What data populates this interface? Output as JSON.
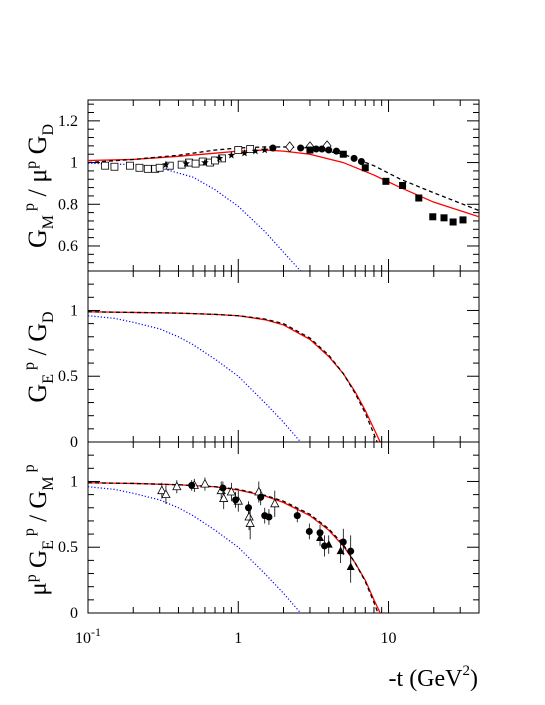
{
  "chart_data": [
    {
      "type": "line",
      "panel": "top",
      "ylabel": {
        "main": "G",
        "sub1": "M",
        "sup1": "p",
        "mid": " / μ",
        "sup2": "p",
        "end": " G",
        "sub2": "D"
      },
      "xscale": "log",
      "xlim": [
        0.1,
        40
      ],
      "ylim": [
        0.48,
        1.3
      ],
      "yticks": [
        {
          "value": 0.6,
          "label": "0.6"
        },
        {
          "value": 0.8,
          "label": "0.8"
        },
        {
          "value": 1.0,
          "label": "1"
        },
        {
          "value": 1.2,
          "label": "1.2"
        }
      ],
      "series": [
        {
          "style": "red-solid",
          "color": "#ff0000",
          "points": [
            [
              0.1,
              1.01
            ],
            [
              0.2,
              1.015
            ],
            [
              0.4,
              1.03
            ],
            [
              0.7,
              1.045
            ],
            [
              1.0,
              1.055
            ],
            [
              1.5,
              1.06
            ],
            [
              2.0,
              1.055
            ],
            [
              3.0,
              1.04
            ],
            [
              5.0,
              1.0
            ],
            [
              8.0,
              0.94
            ],
            [
              12.0,
              0.88
            ],
            [
              20.0,
              0.81
            ],
            [
              40.0,
              0.74
            ]
          ]
        },
        {
          "style": "black-dashed",
          "color": "#000000",
          "points": [
            [
              0.1,
              1.0
            ],
            [
              0.2,
              1.015
            ],
            [
              0.4,
              1.035
            ],
            [
              0.7,
              1.06
            ],
            [
              1.0,
              1.07
            ],
            [
              1.5,
              1.075
            ],
            [
              2.0,
              1.075
            ],
            [
              3.0,
              1.07
            ],
            [
              5.0,
              1.04
            ],
            [
              8.0,
              0.985
            ],
            [
              12.0,
              0.92
            ],
            [
              20.0,
              0.855
            ],
            [
              40.0,
              0.77
            ]
          ]
        },
        {
          "style": "blue-dotted",
          "color": "#0000ff",
          "points": [
            [
              0.1,
              0.997
            ],
            [
              0.2,
              0.99
            ],
            [
              0.3,
              0.975
            ],
            [
              0.5,
              0.93
            ],
            [
              0.7,
              0.87
            ],
            [
              1.0,
              0.79
            ],
            [
              1.5,
              0.67
            ],
            [
              2.0,
              0.57
            ],
            [
              2.6,
              0.48
            ]
          ]
        }
      ],
      "markers": [
        {
          "shape": "square-open",
          "points": [
            [
              0.13,
              0.985
            ],
            [
              0.15,
              0.98
            ],
            [
              0.19,
              0.985
            ],
            [
              0.22,
              0.975
            ],
            [
              0.25,
              0.97
            ],
            [
              0.28,
              0.97
            ],
            [
              0.3,
              0.975
            ],
            [
              0.35,
              0.985
            ],
            [
              0.42,
              0.99
            ],
            [
              0.47,
              1.0
            ],
            [
              0.52,
              0.995
            ],
            [
              0.58,
              1.005
            ],
            [
              0.65,
              1.0
            ],
            [
              0.7,
              1.01
            ],
            [
              0.78,
              1.02
            ],
            [
              1.0,
              1.06
            ],
            [
              1.2,
              1.065
            ]
          ]
        },
        {
          "shape": "star",
          "points": [
            [
              0.33,
              0.99
            ],
            [
              0.45,
              0.995
            ],
            [
              0.6,
              1.0
            ],
            [
              0.75,
              1.02
            ],
            [
              0.9,
              1.035
            ],
            [
              1.1,
              1.045
            ],
            [
              1.3,
              1.055
            ],
            [
              1.5,
              1.06
            ]
          ]
        },
        {
          "shape": "diamond-open",
          "points": [
            [
              2.2,
              1.075
            ],
            [
              3.0,
              1.075
            ],
            [
              3.9,
              1.08
            ]
          ]
        },
        {
          "shape": "circle-filled",
          "points": [
            [
              1.7,
              1.07
            ],
            [
              2.6,
              1.07
            ],
            [
              3.3,
              1.065
            ],
            [
              3.6,
              1.065
            ],
            [
              4.0,
              1.06
            ],
            [
              4.5,
              1.055
            ],
            [
              5.9,
              1.02
            ],
            [
              6.6,
              1.005
            ]
          ]
        },
        {
          "shape": "square-filled",
          "points": [
            [
              3.0,
              1.06
            ],
            [
              5.0,
              1.04
            ],
            [
              7.0,
              0.975
            ],
            [
              9.6,
              0.91
            ],
            [
              12.4,
              0.89
            ],
            [
              15.9,
              0.83
            ],
            [
              19.7,
              0.74
            ],
            [
              23.4,
              0.735
            ],
            [
              26.9,
              0.715
            ],
            [
              31.3,
              0.725
            ]
          ]
        }
      ]
    },
    {
      "type": "line",
      "panel": "middle",
      "ylabel": {
        "main": "G",
        "sub1": "E",
        "sup1": "p",
        "end": " / G",
        "sub2": "D"
      },
      "xscale": "log",
      "xlim": [
        0.1,
        40
      ],
      "ylim": [
        0,
        1.3
      ],
      "yticks": [
        {
          "value": 0,
          "label": "0"
        },
        {
          "value": 0.5,
          "label": "0.5"
        },
        {
          "value": 1.0,
          "label": "1"
        }
      ],
      "series": [
        {
          "style": "red-solid",
          "color": "#ff0000",
          "points": [
            [
              0.1,
              0.99
            ],
            [
              0.2,
              0.985
            ],
            [
              0.4,
              0.98
            ],
            [
              0.7,
              0.97
            ],
            [
              1.0,
              0.96
            ],
            [
              1.5,
              0.93
            ],
            [
              2.0,
              0.89
            ],
            [
              3.0,
              0.78
            ],
            [
              4.0,
              0.65
            ],
            [
              5.0,
              0.52
            ],
            [
              6.0,
              0.38
            ],
            [
              7.0,
              0.24
            ],
            [
              8.0,
              0.1
            ],
            [
              8.8,
              0.0
            ]
          ]
        },
        {
          "style": "black-dashed",
          "color": "#000000",
          "points": [
            [
              0.1,
              0.99
            ],
            [
              0.2,
              0.985
            ],
            [
              0.4,
              0.98
            ],
            [
              0.7,
              0.97
            ],
            [
              1.0,
              0.96
            ],
            [
              1.5,
              0.935
            ],
            [
              2.0,
              0.9
            ],
            [
              3.0,
              0.79
            ],
            [
              4.0,
              0.66
            ],
            [
              5.0,
              0.52
            ],
            [
              6.0,
              0.37
            ],
            [
              7.0,
              0.22
            ],
            [
              8.0,
              0.06
            ],
            [
              8.4,
              0.0
            ]
          ]
        },
        {
          "style": "blue-dotted",
          "color": "#0000ff",
          "points": [
            [
              0.1,
              0.96
            ],
            [
              0.15,
              0.94
            ],
            [
              0.2,
              0.91
            ],
            [
              0.3,
              0.86
            ],
            [
              0.4,
              0.8
            ],
            [
              0.5,
              0.74
            ],
            [
              0.7,
              0.63
            ],
            [
              1.0,
              0.5
            ],
            [
              1.5,
              0.3
            ],
            [
              2.0,
              0.15
            ],
            [
              2.6,
              0.0
            ]
          ]
        }
      ]
    },
    {
      "type": "line",
      "panel": "bottom",
      "ylabel": {
        "pre": "μ",
        "sup0": "p",
        "main": " G",
        "sub1": "E",
        "sup1": "p",
        "end": " / G",
        "sub2": "M",
        "sup2": "p"
      },
      "xlabel": {
        "main": "-t (GeV",
        "sup": "2",
        "end": ")"
      },
      "xscale": "log",
      "xlim": [
        0.1,
        40
      ],
      "ylim": [
        0,
        1.3
      ],
      "xticks": [
        {
          "value": 0.1,
          "base": "10",
          "exp": "-1"
        },
        {
          "value": 1,
          "base": "1",
          "exp": ""
        },
        {
          "value": 10,
          "base": "10",
          "exp": ""
        }
      ],
      "yticks": [
        {
          "value": 0,
          "label": "0"
        },
        {
          "value": 0.5,
          "label": "0.5"
        },
        {
          "value": 1.0,
          "label": "1"
        }
      ],
      "series": [
        {
          "style": "red-solid",
          "color": "#ff0000",
          "points": [
            [
              0.1,
              0.99
            ],
            [
              0.2,
              0.985
            ],
            [
              0.4,
              0.975
            ],
            [
              0.7,
              0.96
            ],
            [
              1.0,
              0.935
            ],
            [
              1.5,
              0.89
            ],
            [
              2.0,
              0.84
            ],
            [
              3.0,
              0.74
            ],
            [
              4.0,
              0.63
            ],
            [
              5.0,
              0.51
            ],
            [
              6.0,
              0.38
            ],
            [
              7.0,
              0.25
            ],
            [
              8.0,
              0.1
            ],
            [
              8.8,
              0.0
            ]
          ]
        },
        {
          "style": "black-dashed",
          "color": "#000000",
          "points": [
            [
              0.1,
              0.99
            ],
            [
              0.2,
              0.985
            ],
            [
              0.4,
              0.975
            ],
            [
              0.7,
              0.96
            ],
            [
              1.0,
              0.94
            ],
            [
              1.5,
              0.895
            ],
            [
              2.0,
              0.85
            ],
            [
              3.0,
              0.75
            ],
            [
              4.0,
              0.64
            ],
            [
              5.0,
              0.52
            ],
            [
              6.0,
              0.38
            ],
            [
              7.0,
              0.24
            ],
            [
              8.0,
              0.08
            ],
            [
              8.5,
              0.0
            ]
          ]
        },
        {
          "style": "blue-dotted",
          "color": "#0000ff",
          "points": [
            [
              0.1,
              0.96
            ],
            [
              0.15,
              0.94
            ],
            [
              0.2,
              0.91
            ],
            [
              0.3,
              0.86
            ],
            [
              0.4,
              0.8
            ],
            [
              0.5,
              0.74
            ],
            [
              0.7,
              0.63
            ],
            [
              1.0,
              0.5
            ],
            [
              1.5,
              0.3
            ],
            [
              2.0,
              0.15
            ],
            [
              2.6,
              0.0
            ]
          ]
        }
      ],
      "markers": [
        {
          "shape": "triangle-open",
          "points": [
            [
              0.31,
              0.93,
              0.06
            ],
            [
              0.33,
              0.9,
              0.07
            ],
            [
              0.39,
              0.96,
              0.05
            ],
            [
              0.51,
              0.97,
              0.05
            ],
            [
              0.6,
              0.98,
              0.05
            ],
            [
              0.77,
              0.93,
              0.07
            ],
            [
              0.8,
              0.87,
              0.08
            ],
            [
              0.9,
              0.92,
              0.07
            ],
            [
              1.0,
              0.85,
              0.08
            ],
            [
              1.18,
              0.73,
              0.1
            ],
            [
              1.2,
              0.68,
              0.12
            ],
            [
              1.37,
              0.92,
              0.08
            ],
            [
              1.75,
              0.83,
              0.1
            ]
          ]
        },
        {
          "shape": "circle-filled",
          "points": [
            [
              0.49,
              0.97,
              0.04
            ],
            [
              0.79,
              0.95,
              0.05
            ],
            [
              0.96,
              0.86,
              0.06
            ],
            [
              1.17,
              0.8,
              0.05
            ],
            [
              1.41,
              0.88,
              0.06
            ],
            [
              1.5,
              0.74,
              0.06
            ],
            [
              1.6,
              0.73,
              0.06
            ],
            [
              2.47,
              0.74,
              0.05
            ],
            [
              2.97,
              0.62,
              0.06
            ],
            [
              3.5,
              0.61,
              0.06
            ],
            [
              3.75,
              0.51,
              0.08
            ],
            [
              5.0,
              0.54,
              0.1
            ],
            [
              5.6,
              0.47,
              0.12
            ]
          ]
        },
        {
          "shape": "triangle-filled",
          "points": [
            [
              3.5,
              0.57,
              0.06
            ],
            [
              4.0,
              0.52,
              0.07
            ],
            [
              4.8,
              0.47,
              0.09
            ],
            [
              5.6,
              0.35,
              0.12
            ]
          ]
        }
      ]
    }
  ]
}
